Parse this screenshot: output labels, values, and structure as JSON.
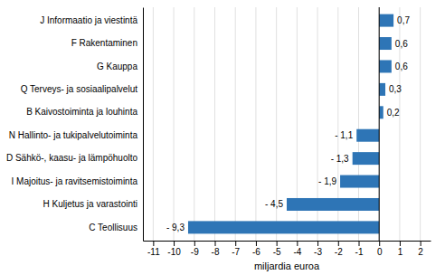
{
  "chart_data": {
    "type": "bar",
    "orientation": "horizontal",
    "categories": [
      "C Teollisuus",
      "H Kuljetus ja varastointi",
      "I Majoitus- ja ravitsemistoiminta",
      "D Sähkö-, kaasu- ja lämpöhuolto",
      "N Hallinto- ja tukipalvelutoiminta",
      "B Kaivostoiminta ja louhinta",
      "Q Terveys- ja sosiaalipalvelut",
      "G Kauppa",
      "F Rakentaminen",
      "J Informaatio ja viestintä"
    ],
    "values": [
      -9.3,
      -4.5,
      -1.9,
      -1.3,
      -1.1,
      0.2,
      0.3,
      0.6,
      0.6,
      0.7
    ],
    "value_labels": [
      "- 9,3",
      "- 4,5",
      "- 1,9",
      "- 1,3",
      "- 1,1",
      "0,2",
      "0,3",
      "0,6",
      "0,6",
      "0,7"
    ],
    "data_labels": true,
    "color": "#2E75B6",
    "xlabel": "miljardia euroa",
    "xlim": [
      -11.5,
      2.5
    ],
    "xticks": [
      -11,
      -10,
      -9,
      -8,
      -7,
      -6,
      -5,
      -4,
      -3,
      -2,
      -1,
      0,
      1,
      2
    ],
    "grid": true
  }
}
